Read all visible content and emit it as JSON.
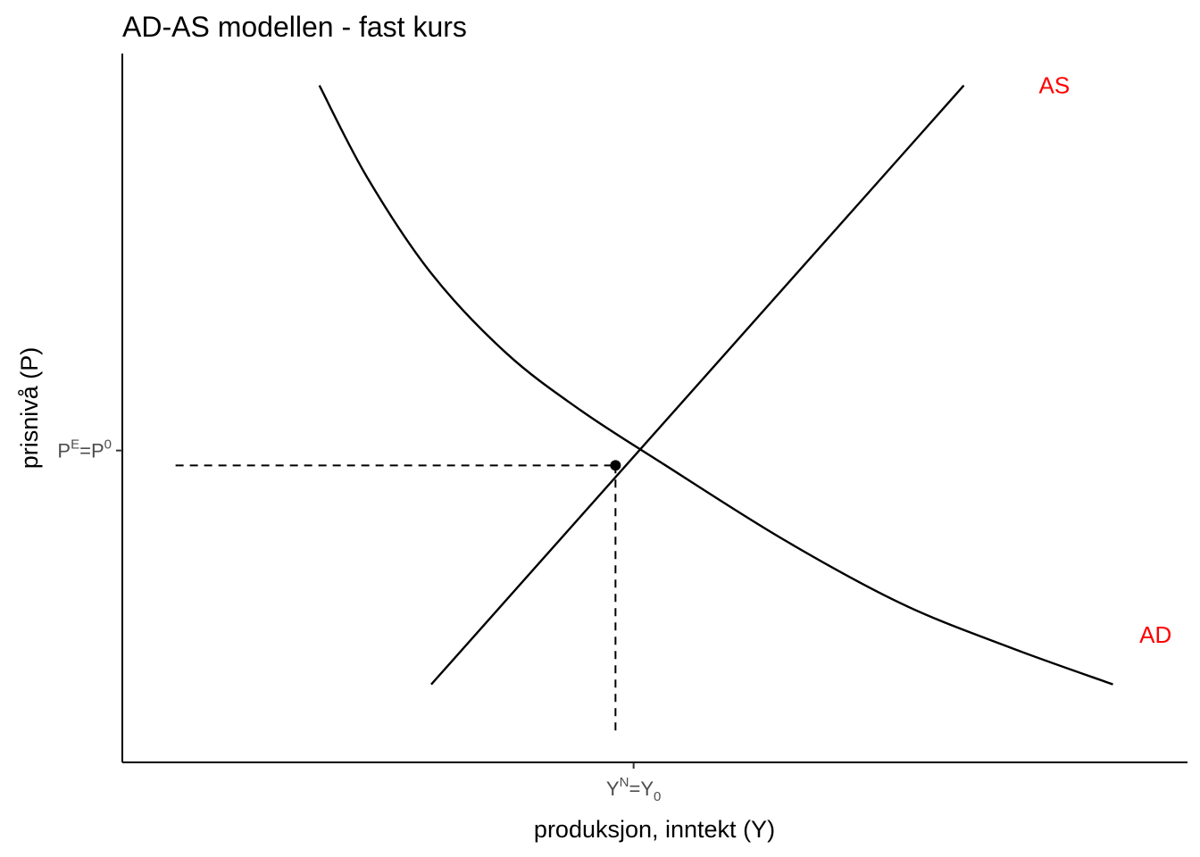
{
  "chart_data": {
    "type": "line",
    "title": "AD-AS modellen - fast kurs",
    "xlabel": "produksjon, inntekt (Y)",
    "ylabel": "prisnivå (P)",
    "xlim": [
      0,
      10
    ],
    "ylim": [
      0,
      10
    ],
    "grid": false,
    "label_color": "#ff0000",
    "x_ticks": [
      {
        "value": 4.8,
        "base": "Y",
        "sup": "N",
        "eq": "=",
        "base2": "Y",
        "sub2": "0"
      }
    ],
    "y_ticks": [
      {
        "value": 4.4,
        "base": "P",
        "sup": "E",
        "eq": "=",
        "base2": "P",
        "sup2": "0"
      }
    ],
    "series": [
      {
        "name": "AD",
        "points": [
          [
            1.85,
            9.55
          ],
          [
            2.3,
            8.25
          ],
          [
            2.9,
            6.9
          ],
          [
            3.6,
            5.78
          ],
          [
            4.3,
            4.97
          ],
          [
            5.1,
            4.19
          ],
          [
            6.2,
            3.15
          ],
          [
            7.3,
            2.25
          ],
          [
            8.3,
            1.64
          ],
          [
            9.3,
            1.1
          ]
        ],
        "label_at": [
          9.7,
          1.8
        ]
      },
      {
        "name": "AS",
        "points": [
          [
            2.9,
            1.1
          ],
          [
            7.9,
            9.55
          ]
        ],
        "label_at": [
          8.75,
          9.55
        ]
      }
    ],
    "equilibrium": {
      "x": 4.63,
      "y": 4.19
    },
    "reference_lines": [
      {
        "orientation": "horizontal",
        "y": 4.19,
        "x_from": 0.5,
        "x_to": 4.63,
        "style": "dashed"
      },
      {
        "orientation": "vertical",
        "x": 4.63,
        "y_from": 0.45,
        "y_to": 4.19,
        "style": "dashed"
      }
    ]
  }
}
